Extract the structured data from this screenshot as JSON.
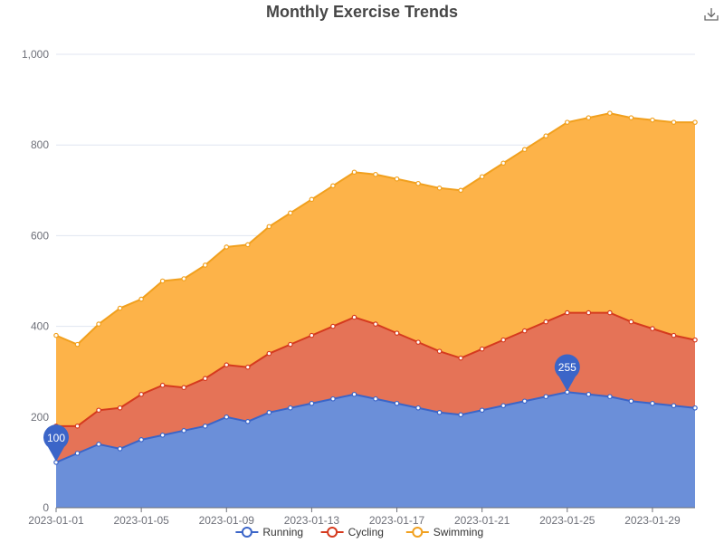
{
  "chart_data": {
    "type": "area",
    "stacked": true,
    "title": "Monthly Exercise Trends",
    "xlabel": "",
    "ylabel": "",
    "ylim": [
      0,
      1000
    ],
    "yticks": [
      0,
      200,
      400,
      600,
      800,
      1000
    ],
    "ytick_labels": [
      "0",
      "200",
      "400",
      "600",
      "800",
      "1,000"
    ],
    "grid": true,
    "legend_position": "bottom",
    "x": [
      "2023-01-01",
      "2023-01-02",
      "2023-01-03",
      "2023-01-04",
      "2023-01-05",
      "2023-01-06",
      "2023-01-07",
      "2023-01-08",
      "2023-01-09",
      "2023-01-10",
      "2023-01-11",
      "2023-01-12",
      "2023-01-13",
      "2023-01-14",
      "2023-01-15",
      "2023-01-16",
      "2023-01-17",
      "2023-01-18",
      "2023-01-19",
      "2023-01-20",
      "2023-01-21",
      "2023-01-22",
      "2023-01-23",
      "2023-01-24",
      "2023-01-25",
      "2023-01-26",
      "2023-01-27",
      "2023-01-28",
      "2023-01-29",
      "2023-01-30",
      "2023-01-31"
    ],
    "xtick_labels": [
      "2023-01-01",
      "2023-01-05",
      "2023-01-09",
      "2023-01-13",
      "2023-01-17",
      "2023-01-21",
      "2023-01-25",
      "2023-01-29"
    ],
    "series": [
      {
        "name": "Running",
        "line_color": "#3b65c8",
        "fill_color": "#6b8fd9",
        "values": [
          100,
          120,
          140,
          130,
          150,
          160,
          170,
          180,
          200,
          190,
          210,
          220,
          230,
          240,
          250,
          240,
          230,
          220,
          210,
          205,
          215,
          225,
          235,
          245,
          255,
          250,
          245,
          235,
          230,
          225,
          220
        ]
      },
      {
        "name": "Cycling",
        "line_color": "#d53a1e",
        "fill_color": "#e57357",
        "values": [
          80,
          60,
          75,
          90,
          100,
          110,
          95,
          105,
          115,
          120,
          130,
          140,
          150,
          160,
          170,
          165,
          155,
          145,
          135,
          125,
          135,
          145,
          155,
          165,
          175,
          180,
          185,
          175,
          165,
          155,
          150
        ]
      },
      {
        "name": "Swimming",
        "line_color": "#f1a01e",
        "fill_color": "#fdb349",
        "values": [
          200,
          180,
          190,
          220,
          210,
          230,
          240,
          250,
          260,
          270,
          280,
          290,
          300,
          310,
          320,
          330,
          340,
          350,
          360,
          370,
          380,
          390,
          400,
          410,
          420,
          430,
          440,
          450,
          460,
          470,
          480
        ]
      }
    ],
    "annotations": [
      {
        "series": "Running",
        "x": "2023-01-01",
        "label": "100"
      },
      {
        "series": "Running",
        "x": "2023-01-25",
        "label": "255"
      }
    ]
  },
  "toolbar": {
    "download_icon": "download-icon"
  }
}
